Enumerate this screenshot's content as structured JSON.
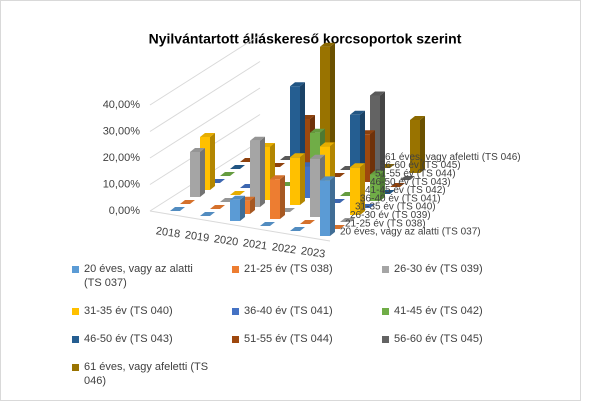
{
  "chart_data": {
    "type": "bar3d",
    "title": "Nyilvántartott álláskereső korcsoportok szerint",
    "categories": [
      "2018",
      "2019",
      "2020",
      "2021",
      "2022",
      "2023"
    ],
    "ylim": [
      0,
      40
    ],
    "yticks": [
      {
        "value": 0,
        "label": "0,00%"
      },
      {
        "value": 10,
        "label": "10,00%"
      },
      {
        "value": 20,
        "label": "20,00%"
      },
      {
        "value": 30,
        "label": "30,00%"
      },
      {
        "value": 40,
        "label": "40,00%"
      }
    ],
    "series": [
      {
        "name": "20 éves, vagy az alatti (TS 037)",
        "color": "#5b9bd5",
        "values": [
          0,
          0,
          8,
          0,
          0,
          21
        ]
      },
      {
        "name": "21-25 év (TS 038)",
        "color": "#ed7d31",
        "values": [
          0,
          0,
          5,
          15,
          0,
          0
        ]
      },
      {
        "name": "26-30 év (TS 039)",
        "color": "#a5a5a5",
        "values": [
          17,
          0,
          25,
          0,
          22,
          0
        ]
      },
      {
        "name": "31-35 év (TS 040)",
        "color": "#ffc000",
        "values": [
          20,
          0,
          20,
          18,
          24,
          18
        ]
      },
      {
        "name": "36-40 év (TS 041)",
        "color": "#4472c4",
        "values": [
          0,
          0,
          0,
          12,
          0,
          0
        ]
      },
      {
        "name": "41-45 év (TS 042)",
        "color": "#70ad47",
        "values": [
          0,
          0,
          0,
          22,
          0,
          10
        ]
      },
      {
        "name": "46-50 év (TS 043)",
        "color": "#255e91",
        "values": [
          0,
          0,
          35,
          0,
          28,
          0
        ]
      },
      {
        "name": "51-55 év (TS 044)",
        "color": "#9e480e",
        "values": [
          0,
          0,
          20,
          0,
          18,
          0
        ]
      },
      {
        "name": "56-60 év (TS 045)",
        "color": "#636363",
        "values": [
          0,
          0,
          0,
          0,
          30,
          0
        ]
      },
      {
        "name": "61 éves, vagy afeletti (TS 046)",
        "color": "#997300",
        "values": [
          0,
          0,
          42,
          0,
          0,
          20
        ]
      }
    ]
  }
}
